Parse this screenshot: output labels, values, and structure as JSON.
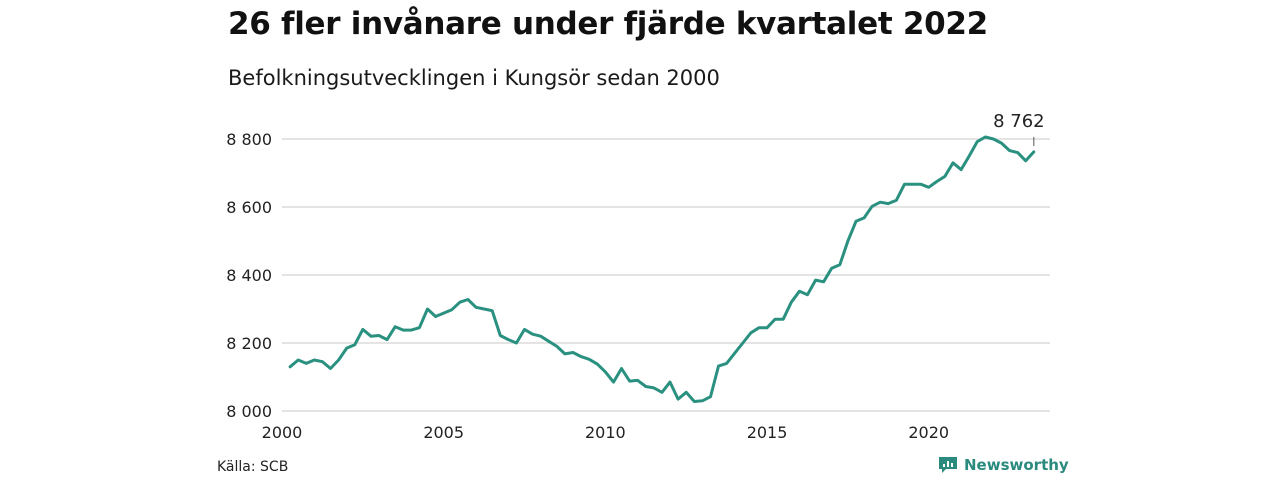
{
  "title": "26 fler invånare under fjärde kvartalet 2022",
  "subtitle": "Befolkningsutvecklingen i Kungsör sedan 2000",
  "source": "Källa: SCB",
  "brand": "Newsworthy",
  "colors": {
    "line": "#2a9080",
    "grid": "#dcdcdc",
    "brand": "#2a8a7e"
  },
  "chart_data": {
    "type": "line",
    "title": "26 fler invånare under fjärde kvartalet 2022",
    "subtitle": "Befolkningsutvecklingen i Kungsör sedan 2000",
    "xlabel": "",
    "ylabel": "",
    "xlim": [
      2000,
      2023.75
    ],
    "ylim": [
      8000,
      8800
    ],
    "xticks": [
      2000,
      2005,
      2010,
      2015,
      2020
    ],
    "xtick_labels": [
      "2000",
      "2005",
      "2010",
      "2015",
      "2020"
    ],
    "yticks": [
      8000,
      8200,
      8400,
      8600,
      8800
    ],
    "ytick_labels": [
      "8 000",
      "8 200",
      "8 400",
      "8 600",
      "8 800"
    ],
    "grid": "horizontal",
    "last_value_label": "8 762",
    "series": [
      {
        "x_start": 2000.25,
        "x_step": 0.25,
        "values": [
          8130,
          8150,
          8140,
          8150,
          8145,
          8125,
          8150,
          8185,
          8195,
          8240,
          8220,
          8222,
          8210,
          8248,
          8238,
          8238,
          8245,
          8300,
          8278,
          8288,
          8298,
          8320,
          8328,
          8305,
          8300,
          8295,
          8222,
          8210,
          8200,
          8240,
          8226,
          8220,
          8205,
          8190,
          8168,
          8172,
          8160,
          8152,
          8138,
          8115,
          8085,
          8125,
          8088,
          8090,
          8072,
          8068,
          8055,
          8085,
          8035,
          8055,
          8028,
          8030,
          8042,
          8132,
          8140,
          8170,
          8200,
          8230,
          8245,
          8245,
          8270,
          8270,
          8320,
          8352,
          8342,
          8385,
          8380,
          8420,
          8430,
          8500,
          8558,
          8568,
          8602,
          8614,
          8610,
          8620,
          8667,
          8667,
          8667,
          8658,
          8675,
          8690,
          8730,
          8710,
          8750,
          8792,
          8806,
          8800,
          8788,
          8766,
          8760,
          8736,
          8762
        ]
      }
    ]
  }
}
